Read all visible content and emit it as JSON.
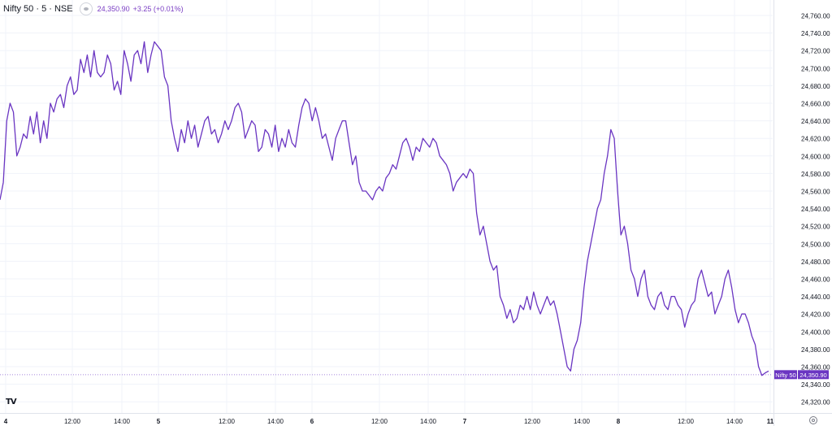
{
  "header": {
    "symbol": "Nifty 50 · 5 · NSE",
    "price": "24,350.90",
    "change": "+3.25 (+0.01%)"
  },
  "price_label": {
    "name": "Nifty 50",
    "value": "24,350.90"
  },
  "icons": {
    "logo": "tradingview-logo-icon",
    "settings": "gear-icon",
    "visibility": "eye-icon"
  },
  "colors": {
    "line": "#6a35c2",
    "label_bg": "#6a35c2",
    "grid": "#f0f3fa",
    "axis_text": "#131722"
  },
  "chart_data": {
    "type": "line",
    "title": "",
    "xlabel": "",
    "ylabel": "",
    "series": [
      {
        "name": "Nifty 50",
        "values": [
          24550,
          24570,
          24640,
          24660,
          24650,
          24600,
          24610,
          24625,
          24620,
          24645,
          24625,
          24650,
          24615,
          24640,
          24620,
          24660,
          24650,
          24665,
          24670,
          24655,
          24680,
          24690,
          24670,
          24675,
          24710,
          24695,
          24715,
          24690,
          24720,
          24695,
          24690,
          24695,
          24715,
          24705,
          24675,
          24685,
          24670,
          24720,
          24705,
          24685,
          24715,
          24720,
          24705,
          24730,
          24695,
          24715,
          24730,
          24725,
          24720,
          24690,
          24680,
          24640,
          24620,
          24605,
          24630,
          24615,
          24640,
          24620,
          24635,
          24610,
          24625,
          24640,
          24645,
          24625,
          24630,
          24615,
          24625,
          24640,
          24630,
          24640,
          24655,
          24660,
          24650,
          24620,
          24630,
          24640,
          24635,
          24605,
          24610,
          24630,
          24625,
          24610,
          24635,
          24605,
          24620,
          24610,
          24630,
          24615,
          24610,
          24635,
          24655,
          24665,
          24660,
          24640,
          24655,
          24640,
          24620,
          24625,
          24610,
          24595,
          24620,
          24630,
          24640,
          24640,
          24615,
          24590,
          24600,
          24570,
          24560,
          24560,
          24555,
          24550,
          24560,
          24565,
          24560,
          24575,
          24580,
          24590,
          24585,
          24600,
          24615,
          24620,
          24610,
          24595,
          24610,
          24605,
          24620,
          24615,
          24610,
          24620,
          24615,
          24600,
          24595,
          24590,
          24580,
          24560,
          24570,
          24575,
          24580,
          24575,
          24585,
          24580,
          24535,
          24510,
          24520,
          24500,
          24480,
          24470,
          24475,
          24440,
          24430,
          24415,
          24425,
          24410,
          24415,
          24430,
          24425,
          24440,
          24425,
          24445,
          24430,
          24420,
          24430,
          24440,
          24430,
          24435,
          24420,
          24400,
          24380,
          24360,
          24355,
          24380,
          24390,
          24410,
          24450,
          24480,
          24500,
          24520,
          24540,
          24550,
          24580,
          24600,
          24630,
          24620,
          24560,
          24510,
          24520,
          24500,
          24470,
          24460,
          24440,
          24460,
          24470,
          24440,
          24430,
          24425,
          24440,
          24445,
          24430,
          24425,
          24440,
          24440,
          24430,
          24425,
          24405,
          24420,
          24430,
          24435,
          24460,
          24470,
          24455,
          24440,
          24445,
          24420,
          24430,
          24440,
          24460,
          24470,
          24450,
          24425,
          24410,
          24420,
          24420,
          24410,
          24395,
          24385,
          24360,
          24350,
          24353,
          24355
        ]
      }
    ],
    "x_ticks": [
      "4",
      "12:00",
      "14:00",
      "5",
      "12:00",
      "14:00",
      "6",
      "12:00",
      "14:00",
      "7",
      "12:00",
      "14:00",
      "8",
      "12:00",
      "14:00",
      "11"
    ],
    "x_ticks_bold": [
      true,
      false,
      false,
      true,
      false,
      false,
      true,
      false,
      false,
      true,
      false,
      false,
      true,
      false,
      false,
      true
    ],
    "y_ticks": [
      "24,760.00",
      "24,740.00",
      "24,720.00",
      "24,700.00",
      "24,680.00",
      "24,660.00",
      "24,640.00",
      "24,620.00",
      "24,600.00",
      "24,580.00",
      "24,560.00",
      "24,540.00",
      "24,520.00",
      "24,500.00",
      "24,480.00",
      "24,460.00",
      "24,440.00",
      "24,420.00",
      "24,400.00",
      "24,380.00",
      "24,360.00",
      "24,340.00",
      "24,320.00"
    ],
    "ylim": [
      24320,
      24760
    ],
    "last_value": 24350.9,
    "grid": true,
    "legend": "none"
  }
}
